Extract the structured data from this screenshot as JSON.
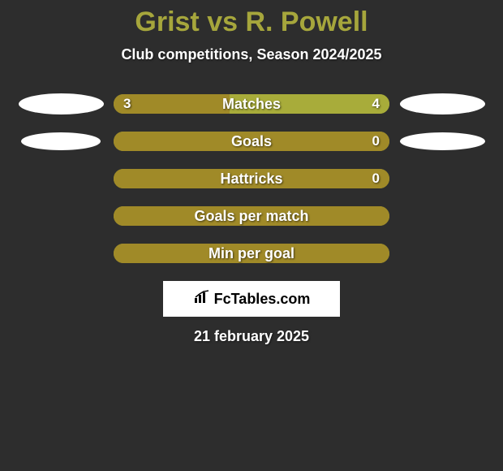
{
  "title": "Grist vs R. Powell",
  "subtitle": "Club competitions, Season 2024/2025",
  "date": "21 february 2025",
  "logo_text": "FcTables.com",
  "colors": {
    "background": "#2d2d2d",
    "accent": "#a6a63c",
    "bar_left": "#a08a28",
    "bar_right": "#a8ac3a",
    "ellipse": "#ffffff",
    "text": "#ffffff"
  },
  "stats": [
    {
      "label": "Matches",
      "left_val": "3",
      "right_val": "4",
      "left_pct": 42,
      "right_pct": 58,
      "show_left_ellipse": true,
      "show_right_ellipse": true,
      "left_ellipse_w": 105,
      "left_ellipse_h": 26,
      "right_ellipse_w": 105,
      "right_ellipse_h": 26
    },
    {
      "label": "Goals",
      "left_val": "",
      "right_val": "0",
      "left_pct": 100,
      "right_pct": 0,
      "show_left_ellipse": true,
      "show_right_ellipse": true,
      "left_ellipse_w": 98,
      "left_ellipse_h": 22,
      "right_ellipse_w": 105,
      "right_ellipse_h": 22
    },
    {
      "label": "Hattricks",
      "left_val": "",
      "right_val": "0",
      "left_pct": 100,
      "right_pct": 0,
      "show_left_ellipse": false,
      "show_right_ellipse": false,
      "left_ellipse_w": 0,
      "left_ellipse_h": 0,
      "right_ellipse_w": 0,
      "right_ellipse_h": 0
    },
    {
      "label": "Goals per match",
      "left_val": "",
      "right_val": "",
      "left_pct": 100,
      "right_pct": 0,
      "show_left_ellipse": false,
      "show_right_ellipse": false,
      "left_ellipse_w": 0,
      "left_ellipse_h": 0,
      "right_ellipse_w": 0,
      "right_ellipse_h": 0
    },
    {
      "label": "Min per goal",
      "left_val": "",
      "right_val": "",
      "left_pct": 100,
      "right_pct": 0,
      "show_left_ellipse": false,
      "show_right_ellipse": false,
      "left_ellipse_w": 0,
      "left_ellipse_h": 0,
      "right_ellipse_w": 0,
      "right_ellipse_h": 0
    }
  ]
}
